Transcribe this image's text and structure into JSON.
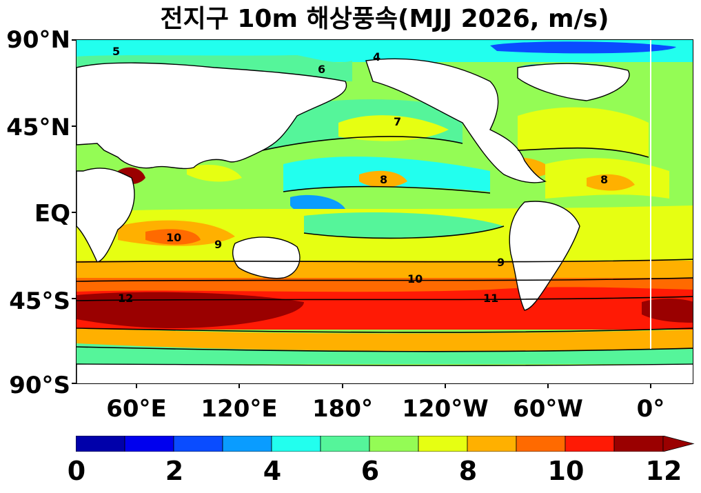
{
  "title": "전지구 10m 해상풍속(MJJ 2026, m/s)",
  "map": {
    "lat_labels": [
      "90°N",
      "45°N",
      "EQ",
      "45°S",
      "90°S"
    ],
    "lon_labels": [
      "60°E",
      "120°E",
      "180°",
      "120°W",
      "60°W",
      "0°"
    ]
  },
  "colorbar": {
    "labels": [
      "0",
      "2",
      "4",
      "6",
      "8",
      "10",
      "12"
    ],
    "colors": [
      "#0000aa",
      "#0000ee",
      "#0a4cff",
      "#0a9cff",
      "#22ffee",
      "#55f59a",
      "#94fc55",
      "#e6ff12",
      "#ffb000",
      "#ff6a00",
      "#ff1a05",
      "#9a0000"
    ],
    "extend": "max",
    "units": "m/s"
  },
  "contour_labels": [
    "5",
    "4",
    "6",
    "7",
    "8",
    "9",
    "10",
    "11",
    "12"
  ]
}
